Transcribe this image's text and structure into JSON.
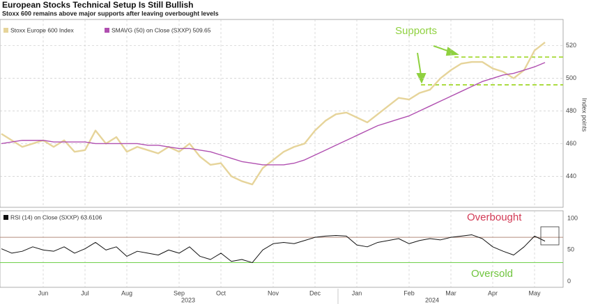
{
  "chart_data": {
    "type": "line",
    "title": "European Stocks Technical Setup Is Still Bullish",
    "subtitle": "Stoxx 600 remains above major supports after leaving overbought levels",
    "ylabel": "Index points",
    "categories": [
      null,
      null,
      null,
      null,
      "Jun",
      null,
      null,
      null,
      "Jul",
      null,
      null,
      null,
      "Aug",
      null,
      null,
      null,
      null,
      "Sep",
      null,
      null,
      null,
      "Oct",
      null,
      null,
      null,
      null,
      "Nov",
      null,
      null,
      null,
      "Dec",
      null,
      null,
      null,
      "Jan",
      null,
      null,
      null,
      null,
      "Feb",
      null,
      null,
      null,
      "Mar",
      null,
      null,
      null,
      "Apr",
      null,
      null,
      null,
      "May",
      null
    ],
    "x_group_labels": [
      "2023",
      "2024"
    ],
    "series": [
      {
        "name": "Stoxx Europe 600 Index",
        "color": "#e6d49a",
        "values": [
          466,
          462,
          458,
          460,
          462,
          458,
          462,
          455,
          456,
          468,
          460,
          464,
          455,
          458,
          456,
          454,
          458,
          455,
          460,
          452,
          447,
          448,
          440,
          437,
          435,
          445,
          450,
          455,
          458,
          460,
          468,
          474,
          478,
          479,
          476,
          473,
          478,
          483,
          488,
          487,
          491,
          493,
          500,
          505,
          509,
          510,
          510,
          506,
          504,
          500,
          505,
          517,
          522
        ]
      },
      {
        "name": "SMAVG (50)  on Close (SXXP) 509.65",
        "color": "#b04fb0",
        "values": [
          460,
          461,
          462,
          462,
          462,
          461,
          461,
          461,
          461,
          460,
          460,
          460,
          460,
          460,
          459,
          459,
          458,
          457,
          457,
          456,
          455,
          453,
          451,
          449,
          448,
          447,
          447,
          447,
          448,
          450,
          453,
          456,
          459,
          462,
          465,
          468,
          471,
          473,
          475,
          477,
          480,
          483,
          486,
          489,
          492,
          495,
          498,
          500,
          502,
          503,
          505,
          507,
          509.65
        ]
      }
    ],
    "ylim": [
      421,
      536
    ],
    "yticks": [
      440,
      460,
      480,
      500,
      520
    ],
    "grid": true,
    "support_levels": [
      513,
      496
    ],
    "annotation": "Supports",
    "rsi": {
      "name": "RSI (14)  on Close (SXXP) 63.6106",
      "color": "#111111",
      "values": [
        52,
        45,
        48,
        55,
        50,
        48,
        55,
        45,
        52,
        62,
        50,
        55,
        40,
        48,
        45,
        42,
        50,
        45,
        55,
        40,
        35,
        45,
        32,
        35,
        30,
        50,
        60,
        62,
        60,
        65,
        70,
        72,
        73,
        72,
        58,
        55,
        62,
        65,
        68,
        60,
        65,
        68,
        66,
        70,
        72,
        74,
        68,
        55,
        48,
        42,
        55,
        72,
        64
      ],
      "ylim": [
        -9,
        112
      ],
      "yticks": [
        0,
        50,
        100
      ],
      "overbought": {
        "value": 70,
        "label": "Overbought",
        "color": "#b38b7c",
        "label_color": "#d23a55"
      },
      "oversold": {
        "value": 30,
        "label": "Oversold",
        "color": "#6fd04a",
        "label_color": "#6fc43d"
      }
    }
  }
}
